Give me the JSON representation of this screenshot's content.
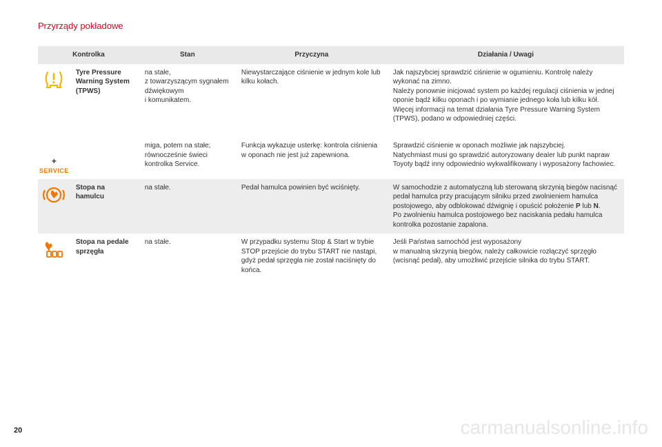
{
  "section_title": "Przyrządy pokładowe",
  "page_number": "20",
  "watermark": "carmanualsonline.info",
  "headers": {
    "col1": "Kontrolka",
    "col2": "Stan",
    "col3": "Przyczyna",
    "col4": "Działania / Uwagi"
  },
  "icons": {
    "tpws_color": "#f5b800",
    "service_text": "SERVICE",
    "service_color": "#f07800",
    "foot_brake_color": "#f07800",
    "foot_clutch_color": "#f07800"
  },
  "rows": [
    {
      "label": "Tyre Pressure Warning System (TPWS)",
      "state": "na stałe,\nz towarzyszącym sygnałem dźwiękowym\ni komunikatem.",
      "cause": "Niewystarczające ciśnienie w jednym kole lub kilku kołach.",
      "action": "Jak najszybciej sprawdzić ciśnienie w ogumieniu. Kontrolę należy wykonać na zimno.\nNależy ponownie inicjować system po każdej regulacji ciśnienia w jednej oponie bądź kilku oponach i po wymianie jednego koła lub kilku kół.\nWięcej informacji na temat działania Tyre Pressure Warning System (TPWS), podano w odpowiedniej części."
    },
    {
      "label": "",
      "state": "miga, potem na stałe; równocześnie świeci kontrolka Service.",
      "cause": "Funkcja wykazuje usterkę: kontrola ciśnienia w oponach nie jest już zapewniona.",
      "action": "Sprawdzić ciśnienie w oponach możliwie jak najszybciej.\nNatychmiast musi go sprawdzić autoryzowany dealer lub punkt napraw Toyoty bądź inny odpowiednio wykwalifikowany i wyposażony fachowiec."
    },
    {
      "label": "Stopa na hamulcu",
      "state": "na stałe.",
      "cause": "Pedał hamulca powinien być wciśnięty.",
      "action": "W samochodzie z automatyczną lub sterowaną skrzynią biegów nacisnąć pedał hamulca przy pracującym silniku przed zwolnieniem hamulca postojowego, aby odblokować dźwignię i opuścić położenie P lub N.\nPo zwolnieniu hamulca postojowego bez naciskania pedału hamulca kontrolka pozostanie zapalona."
    },
    {
      "label": "Stopa na pedale sprzęgła",
      "state": "na stałe.",
      "cause": "W przypadku systemu Stop & Start w trybie STOP przejście do trybu START nie nastąpi, gdyż pedał sprzęgła nie został naciśnięty do końca.",
      "action": "Jeśli Państwa samochód jest wyposażony\nw manualną skrzynią biegów, należy całkowicie rozłączyć sprzęgło (wcisnąć pedał), aby umożliwić przejście silnika do trybu START."
    }
  ],
  "action_bold_P": "P",
  "action_bold_N": "N"
}
